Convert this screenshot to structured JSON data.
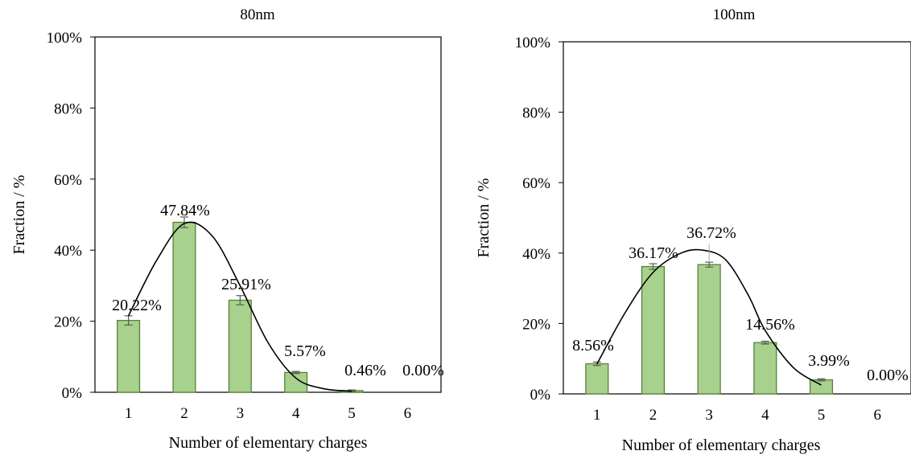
{
  "chart_data": [
    {
      "type": "bar",
      "title": "80nm",
      "xlabel": "Number of elementary charges",
      "ylabel": "Fraction / %",
      "categories": [
        "1",
        "2",
        "3",
        "4",
        "5",
        "6"
      ],
      "values": [
        20.22,
        47.84,
        25.91,
        5.57,
        0.46,
        0.0
      ],
      "error": [
        1.3,
        1.5,
        1.3,
        0.3,
        0.2,
        0.0
      ],
      "data_labels": [
        "20.22%",
        "47.84%",
        "25.91%",
        "5.57%",
        "0.46%",
        "0.00%"
      ],
      "yticks": [
        "0%",
        "20%",
        "40%",
        "60%",
        "80%",
        "100%"
      ],
      "ylim": [
        0,
        100
      ],
      "bar_color": "#a9d18e",
      "bar_edge_color": "#548235",
      "fit_curve": [
        [
          1,
          21.5
        ],
        [
          1.5,
          37.0
        ],
        [
          2,
          47.5
        ],
        [
          2.5,
          44.0
        ],
        [
          3,
          30.0
        ],
        [
          3.5,
          14.0
        ],
        [
          4,
          4.0
        ],
        [
          4.5,
          1.0
        ],
        [
          5,
          0.3
        ]
      ],
      "grid": false,
      "legend": "none"
    },
    {
      "type": "bar",
      "title": "100nm",
      "xlabel": "Number of elementary charges",
      "ylabel": "Fraction / %",
      "categories": [
        "1",
        "2",
        "3",
        "4",
        "5",
        "6"
      ],
      "values": [
        8.56,
        36.17,
        36.72,
        14.56,
        3.99,
        0.0
      ],
      "error": [
        0.5,
        0.8,
        0.7,
        0.4,
        0.3,
        0.0
      ],
      "data_labels": [
        "8.56%",
        "36.17%",
        "36.72%",
        "14.56%",
        "3.99%",
        "0.00%"
      ],
      "yticks": [
        "0%",
        "20%",
        "40%",
        "60%",
        "80%",
        "100%"
      ],
      "ylim": [
        0,
        100
      ],
      "bar_color": "#a9d18e",
      "bar_edge_color": "#548235",
      "fit_curve": [
        [
          1,
          8.5
        ],
        [
          1.5,
          23.0
        ],
        [
          2,
          34.5
        ],
        [
          2.5,
          40.0
        ],
        [
          2.9,
          40.8
        ],
        [
          3.3,
          38.0
        ],
        [
          3.7,
          28.0
        ],
        [
          4,
          18.0
        ],
        [
          4.5,
          7.5
        ],
        [
          5,
          2.5
        ]
      ],
      "grid": false,
      "legend": "none"
    }
  ]
}
